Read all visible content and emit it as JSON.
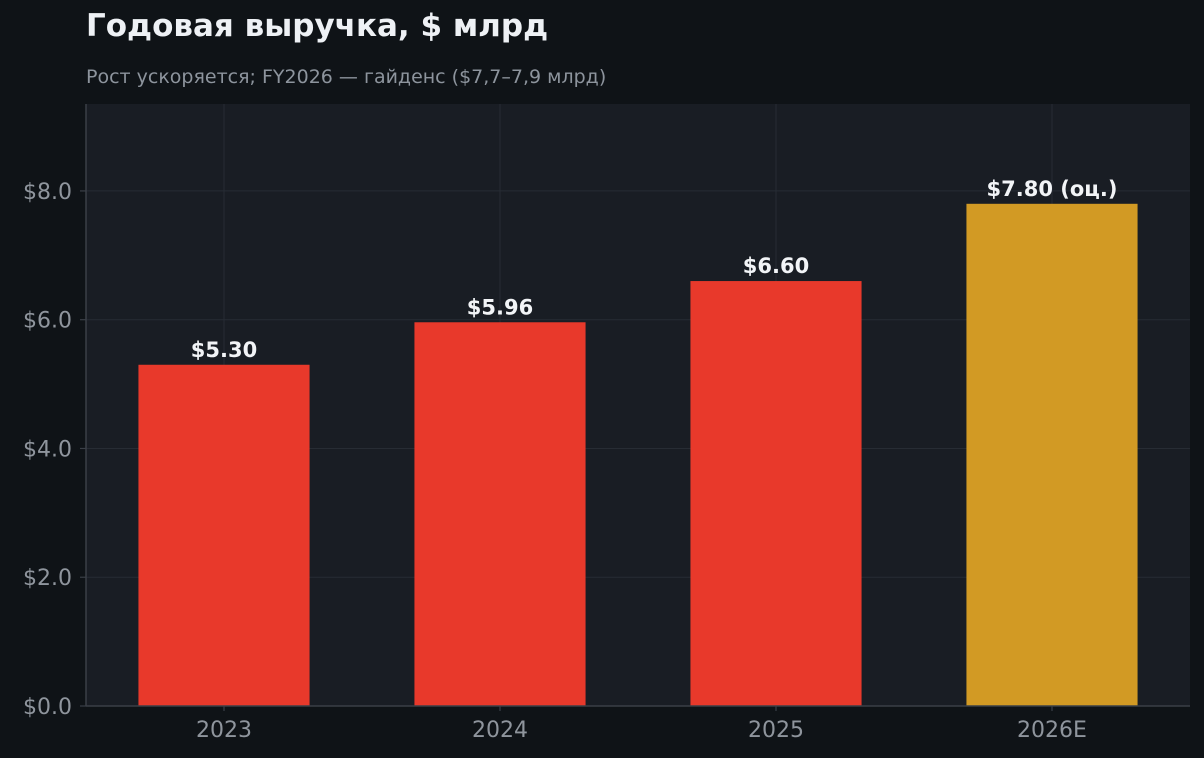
{
  "header": {
    "title": "Годовая выручка, $ млрд",
    "subtitle": "Рост ускоряется; FY2026 — гайденс ($7,7–7,9 млрд)"
  },
  "colors": {
    "page_background": "#0f1317",
    "plot_background": "#191d24",
    "grid": "#272c34",
    "axis": "#3a3f47",
    "actual_bar": "#e8392b",
    "estimate_bar": "#d29a24"
  },
  "chart_data": {
    "type": "bar",
    "title": "Годовая выручка, $ млрд",
    "subtitle": "Рост ускоряется; FY2026 — гайденс ($7,7–7,9 млрд)",
    "xlabel": "",
    "ylabel": "",
    "categories": [
      "2023",
      "2024",
      "2025",
      "2026E"
    ],
    "values": [
      5.3,
      5.96,
      6.6,
      7.8
    ],
    "value_labels": [
      "$5.30",
      "$5.96",
      "$6.60",
      "$7.80 (оц.)"
    ],
    "estimate_flags": [
      false,
      false,
      false,
      true
    ],
    "ylim": [
      0,
      9.35
    ],
    "yticks": [
      0,
      2,
      4,
      6,
      8
    ],
    "ytick_labels": [
      "$0.0",
      "$2.0",
      "$4.0",
      "$6.0",
      "$8.0"
    ],
    "grid": true,
    "legend": "none"
  }
}
